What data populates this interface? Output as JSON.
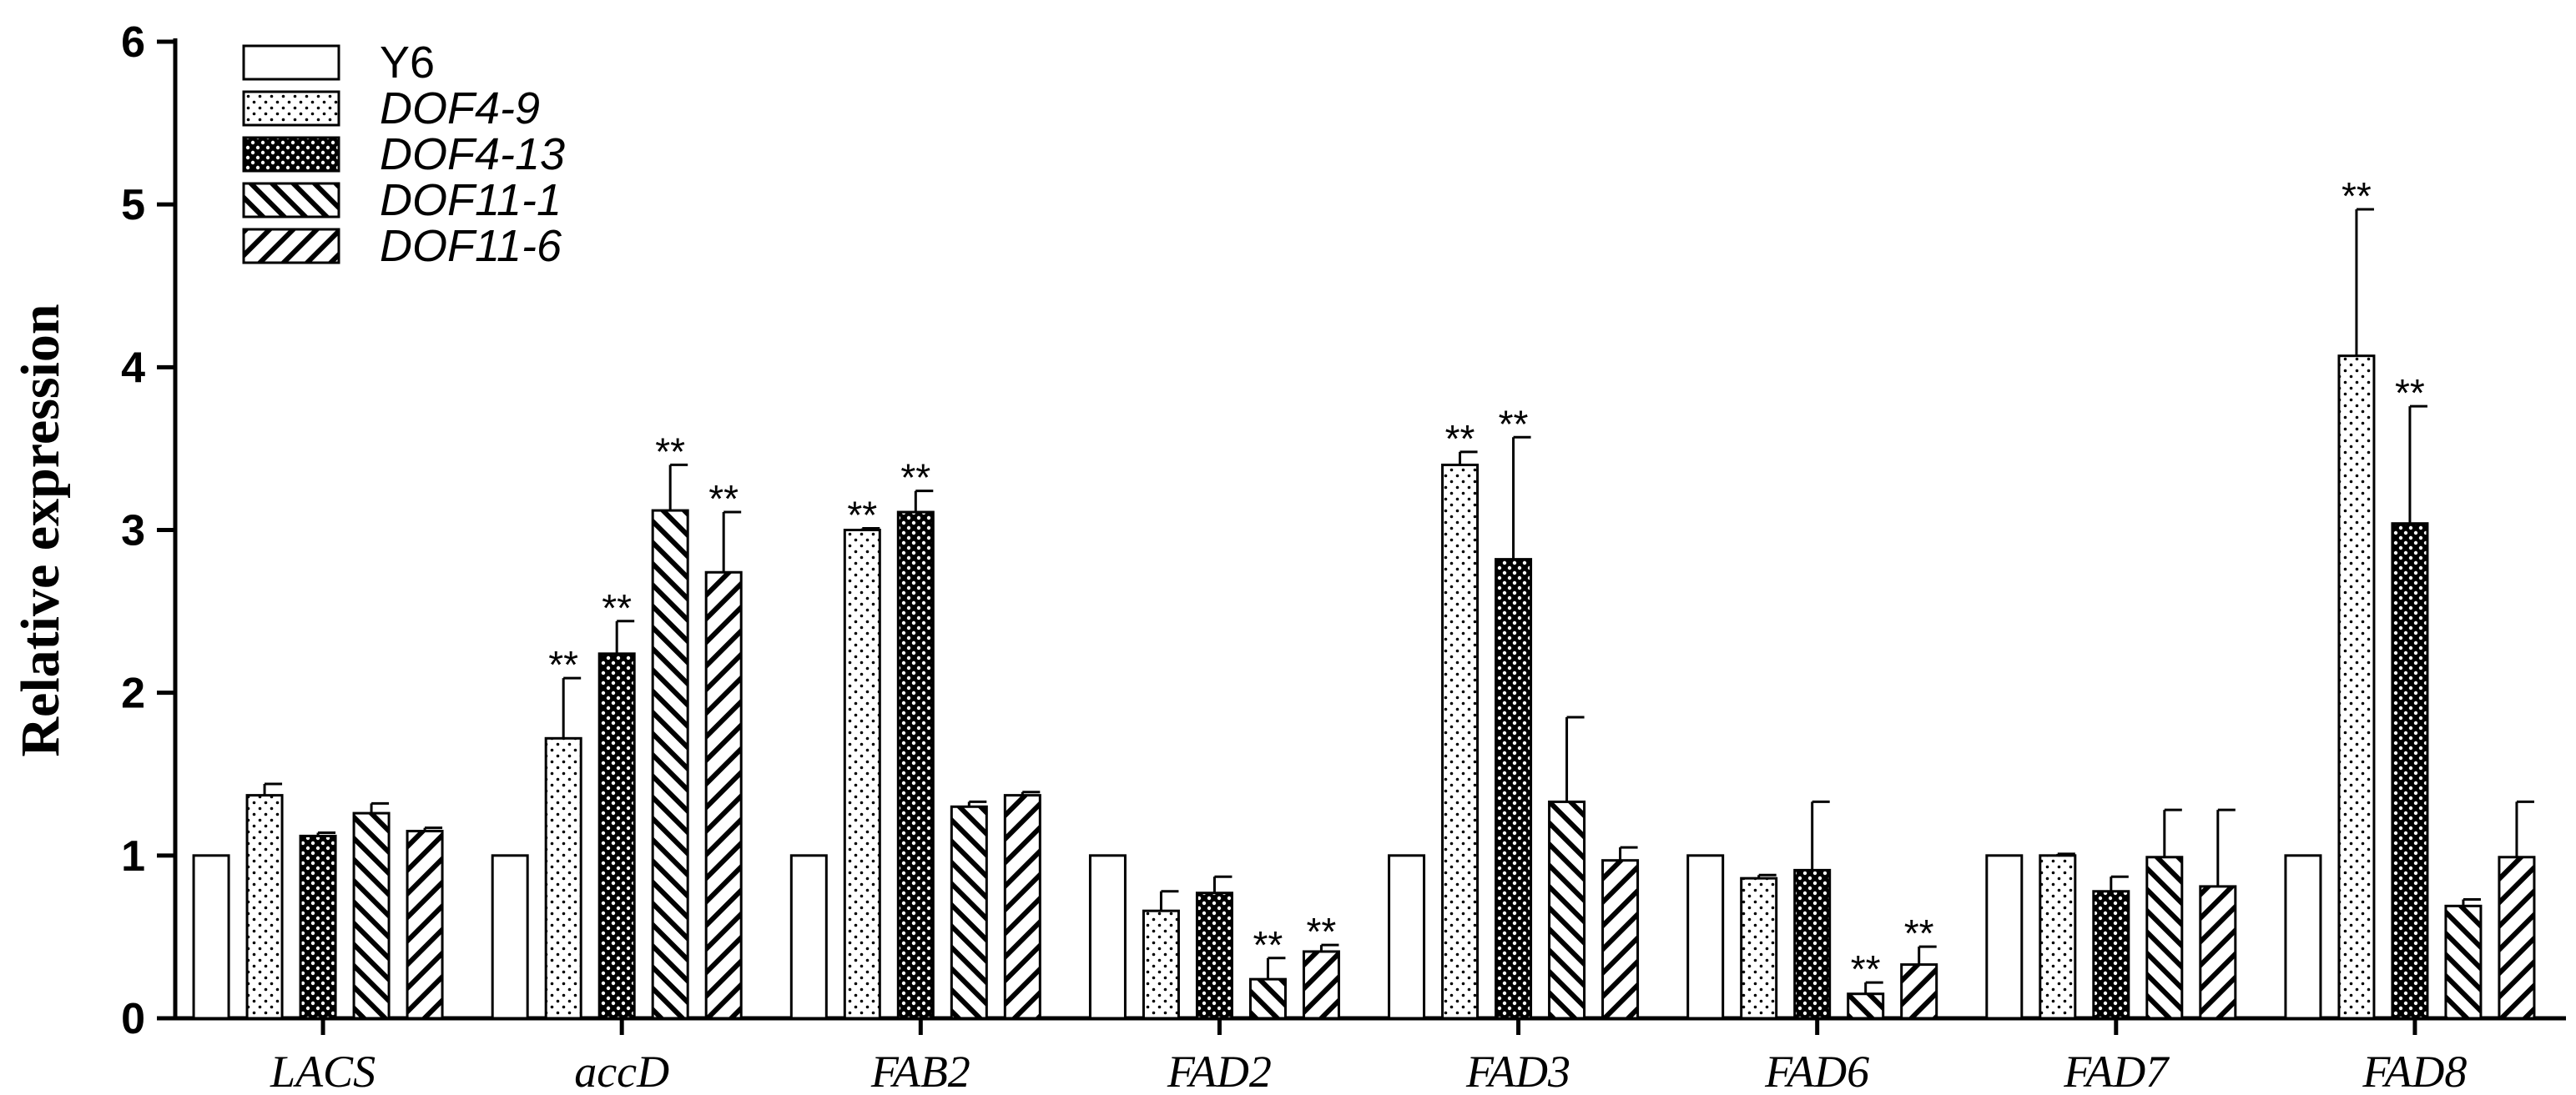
{
  "chart_data": {
    "type": "bar",
    "title": "",
    "xlabel": "",
    "ylabel": "Relative expression",
    "ylim": [
      0,
      6
    ],
    "yticks": [
      "0",
      "1",
      "2",
      "3",
      "4",
      "5",
      "6"
    ],
    "grid": false,
    "legend_position": "top-left",
    "categories": [
      "LACS",
      "accD",
      "FAB2",
      "FAD2",
      "FAD3",
      "FAD6",
      "FAD7",
      "FAD8"
    ],
    "series": [
      {
        "name": "Y6",
        "pattern": "white",
        "italic": false,
        "values": [
          1.0,
          1.0,
          1.0,
          1.0,
          1.0,
          1.0,
          1.0,
          1.0
        ],
        "errors": [
          0,
          0,
          0,
          0,
          0,
          0,
          0,
          0
        ],
        "significance": [
          "",
          "",
          "",
          "",
          "",
          "",
          "",
          ""
        ]
      },
      {
        "name": "DOF4-9",
        "pattern": "dots",
        "italic": true,
        "values": [
          1.37,
          1.72,
          3.0,
          0.66,
          3.4,
          0.86,
          1.0,
          4.07
        ],
        "errors": [
          0.07,
          0.37,
          0.01,
          0.12,
          0.08,
          0.02,
          0.01,
          0.9
        ],
        "significance": [
          "",
          "**",
          "**",
          "",
          "**",
          "",
          "",
          "**"
        ]
      },
      {
        "name": "DOF4-13",
        "pattern": "dense-checker",
        "italic": true,
        "values": [
          1.12,
          2.24,
          3.11,
          0.77,
          2.82,
          0.91,
          0.78,
          3.04
        ],
        "errors": [
          0.02,
          0.2,
          0.13,
          0.1,
          0.75,
          0.42,
          0.09,
          0.72
        ],
        "significance": [
          "",
          "**",
          "**",
          "",
          "**",
          "",
          "",
          "**"
        ]
      },
      {
        "name": "DOF11-1",
        "pattern": "backslash",
        "italic": true,
        "values": [
          1.26,
          3.12,
          1.3,
          0.24,
          1.33,
          0.15,
          0.99,
          0.69
        ],
        "errors": [
          0.06,
          0.28,
          0.03,
          0.13,
          0.52,
          0.07,
          0.29,
          0.04
        ],
        "significance": [
          "",
          "**",
          "",
          "**",
          "",
          "**",
          "",
          ""
        ]
      },
      {
        "name": "DOF11-6",
        "pattern": "slash",
        "italic": true,
        "values": [
          1.15,
          2.74,
          1.37,
          0.41,
          0.97,
          0.33,
          0.81,
          0.99
        ],
        "errors": [
          0.02,
          0.37,
          0.02,
          0.04,
          0.08,
          0.11,
          0.47,
          0.34
        ],
        "significance": [
          "",
          "**",
          "",
          "**",
          "",
          "**",
          "",
          ""
        ]
      }
    ]
  }
}
